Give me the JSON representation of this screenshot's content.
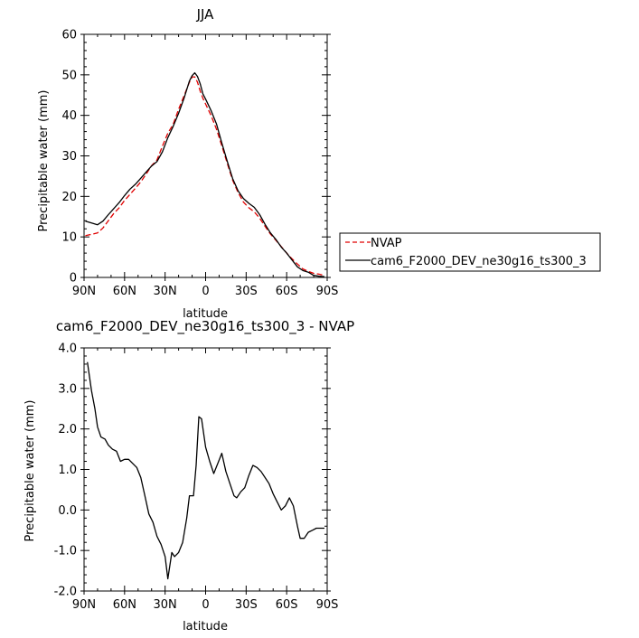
{
  "chart_data": [
    {
      "type": "line",
      "title": "JJA",
      "xlabel": "latitude",
      "ylabel": "Precipitable water (mm)",
      "x_tick_labels": [
        "90N",
        "60N",
        "30N",
        "0",
        "30S",
        "60S",
        "90S"
      ],
      "x_tick_values": [
        90,
        60,
        30,
        0,
        -30,
        -60,
        -90
      ],
      "xlim": [
        90,
        -90
      ],
      "ylim": [
        0,
        60
      ],
      "y_tick_values": [
        0,
        10,
        20,
        30,
        40,
        50,
        60
      ],
      "y_tick_labels": [
        "0",
        "10",
        "20",
        "30",
        "40",
        "50",
        "60"
      ],
      "legend_position": "right",
      "series": [
        {
          "name": "NVAP",
          "color": "#e00000",
          "dash": true,
          "x": [
            89,
            85,
            80,
            76,
            72,
            68,
            64,
            60,
            56,
            52,
            48,
            44,
            40,
            36,
            32,
            28,
            24,
            20,
            16,
            12,
            10,
            8,
            6,
            4,
            2,
            0,
            -4,
            -8,
            -12,
            -16,
            -20,
            -24,
            -28,
            -32,
            -36,
            -40,
            -44,
            -48,
            -52,
            -56,
            -60,
            -64,
            -68,
            -72,
            -76,
            -80,
            -84,
            -88
          ],
          "y": [
            10.3,
            10.6,
            11.0,
            12.2,
            14.0,
            15.8,
            17.2,
            19.0,
            20.5,
            22.0,
            23.6,
            25.5,
            27.6,
            29.0,
            32.4,
            35.6,
            37.8,
            41.5,
            44.8,
            48.2,
            49.5,
            49.5,
            48.2,
            46.0,
            44.2,
            42.8,
            40.0,
            36.6,
            32.5,
            28.2,
            24.0,
            21.0,
            18.6,
            17.2,
            16.2,
            14.6,
            12.6,
            10.7,
            9.2,
            7.6,
            6.0,
            4.6,
            3.3,
            2.1,
            1.5,
            1.0,
            0.8,
            0.5
          ]
        },
        {
          "name": "cam6_F2000_DEV_ne30g16_ts300_3",
          "color": "#000000",
          "dash": false,
          "x": [
            89,
            85,
            80,
            76,
            72,
            68,
            64,
            60,
            56,
            52,
            48,
            44,
            40,
            36,
            32,
            28,
            24,
            20,
            16,
            12,
            10,
            8,
            6,
            4,
            2,
            0,
            -4,
            -8,
            -12,
            -16,
            -20,
            -24,
            -28,
            -32,
            -36,
            -40,
            -44,
            -48,
            -52,
            -56,
            -60,
            -64,
            -68,
            -72,
            -76,
            -80,
            -84,
            -88
          ],
          "y": [
            13.9,
            13.5,
            13.0,
            13.9,
            15.5,
            17.0,
            18.5,
            20.2,
            21.8,
            23.0,
            24.5,
            26.0,
            27.5,
            28.6,
            31.0,
            34.5,
            37.3,
            40.5,
            44.2,
            48.5,
            49.8,
            50.5,
            49.6,
            47.8,
            45.3,
            44.0,
            41.2,
            37.9,
            33.2,
            28.7,
            24.4,
            21.4,
            19.5,
            18.3,
            17.3,
            15.5,
            13.1,
            11.0,
            9.4,
            7.5,
            6.0,
            4.3,
            2.6,
            1.7,
            1.3,
            0.5,
            0.3,
            0.2
          ]
        }
      ]
    },
    {
      "type": "line",
      "title": "cam6_F2000_DEV_ne30g16_ts300_3 - NVAP",
      "xlabel": "latitude",
      "ylabel": "Precipitable water (mm)",
      "x_tick_labels": [
        "90N",
        "60N",
        "30N",
        "0",
        "30S",
        "60S",
        "90S"
      ],
      "x_tick_values": [
        90,
        60,
        30,
        0,
        -30,
        -60,
        -90
      ],
      "xlim": [
        90,
        -90
      ],
      "ylim": [
        -2.0,
        4.0
      ],
      "y_tick_values": [
        -2.0,
        -1.0,
        0.0,
        1.0,
        2.0,
        3.0,
        4.0
      ],
      "y_tick_labels": [
        "-2.0",
        "-1.0",
        "0.0",
        "1.0",
        "2.0",
        "3.0",
        "4.0"
      ],
      "series": [
        {
          "name": "",
          "color": "#000000",
          "dash": false,
          "x": [
            87.5,
            84.5,
            82,
            80,
            77.5,
            74.5,
            72,
            69,
            66,
            63,
            60,
            57,
            54,
            51,
            48,
            45,
            42,
            39,
            36,
            33,
            30,
            28,
            25,
            23,
            20,
            17,
            14,
            12,
            9,
            7,
            5,
            3,
            0,
            -3,
            -6,
            -9,
            -12,
            -15,
            -18,
            -21,
            -23,
            -26,
            -29,
            -32,
            -35,
            -38,
            -41,
            -44,
            -47,
            -50,
            -53,
            -56,
            -59,
            -62,
            -65,
            -68,
            -70,
            -73,
            -76,
            -79,
            -82,
            -85,
            -88
          ],
          "y": [
            3.65,
            2.95,
            2.5,
            2.05,
            1.8,
            1.75,
            1.6,
            1.5,
            1.45,
            1.2,
            1.25,
            1.25,
            1.15,
            1.05,
            0.8,
            0.35,
            -0.1,
            -0.3,
            -0.65,
            -0.85,
            -1.15,
            -1.7,
            -1.05,
            -1.15,
            -1.05,
            -0.8,
            -0.2,
            0.35,
            0.35,
            1.1,
            2.3,
            2.25,
            1.55,
            1.2,
            0.9,
            1.15,
            1.4,
            0.95,
            0.65,
            0.35,
            0.3,
            0.45,
            0.55,
            0.85,
            1.1,
            1.05,
            0.95,
            0.8,
            0.65,
            0.4,
            0.2,
            0.0,
            0.1,
            0.3,
            0.1,
            -0.4,
            -0.7,
            -0.7,
            -0.55,
            -0.5,
            -0.45,
            -0.45,
            -0.45
          ]
        }
      ]
    }
  ]
}
